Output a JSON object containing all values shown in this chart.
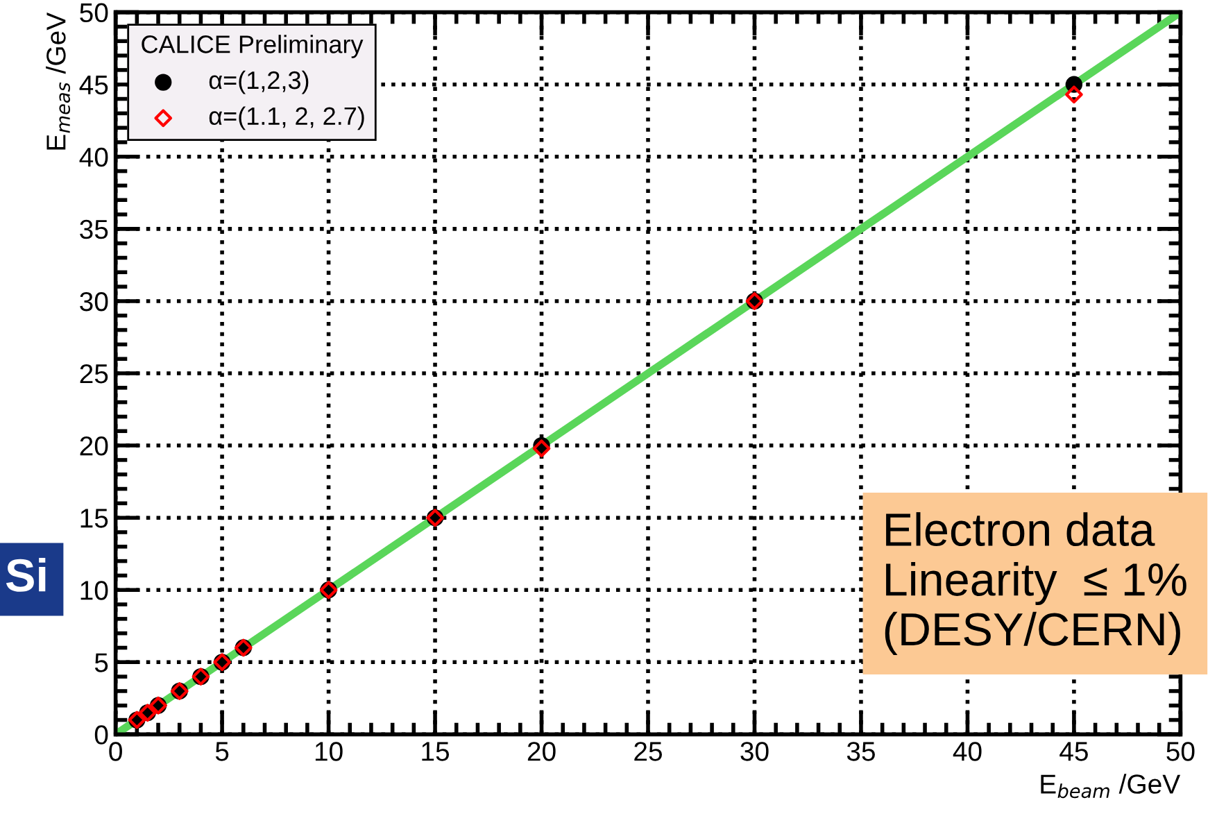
{
  "chart_data": {
    "type": "scatter",
    "xlabel": "E$_{beam}$ /GeV",
    "ylabel": "E$_{meas}$ /GeV",
    "legend_title": "CALICE Preliminary",
    "legend": "top left",
    "grid": true,
    "xlim": [
      0,
      50
    ],
    "ylim": [
      0,
      50
    ],
    "xticks": [
      0,
      5,
      10,
      15,
      20,
      25,
      30,
      35,
      40,
      45,
      50
    ],
    "yticks": [
      0,
      5,
      10,
      15,
      20,
      25,
      30,
      35,
      40,
      45,
      50
    ],
    "series": [
      {
        "type": "line",
        "color": "#5ad65a",
        "x": [
          0,
          50
        ],
        "values": [
          0,
          50
        ],
        "marker": "none"
      },
      {
        "name": "α=(1,2,3)",
        "color": "#000000",
        "marker": "circle",
        "x": [
          1,
          1.5,
          2,
          3,
          4,
          5,
          6,
          10,
          15,
          20,
          30,
          45
        ],
        "values": [
          1,
          1.5,
          2,
          3,
          4,
          5,
          6,
          10,
          15,
          20,
          30,
          45
        ]
      },
      {
        "name": "α=(1.1, 2, 2.7)",
        "color": "#ff0000",
        "marker": "diamond",
        "x": [
          1,
          1.5,
          2,
          3,
          4,
          5,
          6,
          10,
          15,
          20,
          30,
          45
        ],
        "values": [
          1,
          1.5,
          2,
          3,
          4,
          5,
          6,
          10,
          15,
          19.8,
          30,
          44.3
        ]
      }
    ],
    "annotations": [
      "Electron data\nLinearity  ≤ 1%\n(DESY/CERN)",
      "Si"
    ]
  }
}
